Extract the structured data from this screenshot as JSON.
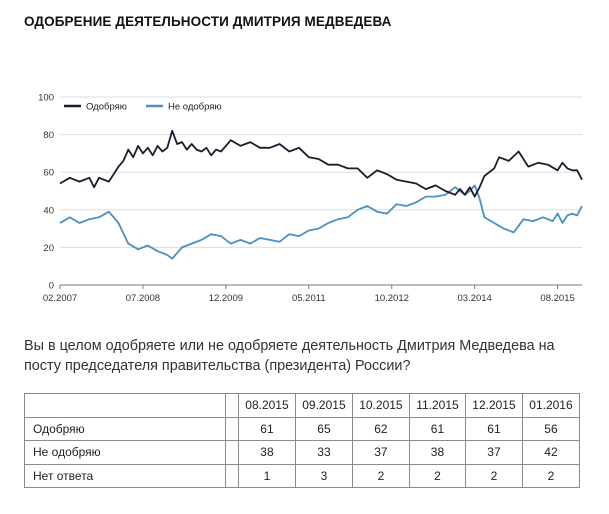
{
  "title": "ОДОБРЕНИЕ ДЕЯТЕЛЬНОСТИ ДМИТРИЯ МЕДВЕДЕВА",
  "question": "Вы в целом одобряете или не одобряете деятельность Дмитрия Медведева на посту председателя правительства (президента) России?",
  "colors": {
    "approve": "#1c1c2e",
    "disapprove": "#4a90c0",
    "grid": "#dddddd"
  },
  "chart_data": {
    "type": "line",
    "x_start": "2007-02",
    "x_end": "2016-01",
    "x_tick_labels": [
      "02.2007",
      "07.2008",
      "12.2009",
      "05.2011",
      "10.2012",
      "03.2014",
      "08.2015"
    ],
    "y_tick_labels": [
      "0",
      "20",
      "40",
      "60",
      "80",
      "100"
    ],
    "ylim": [
      0,
      100
    ],
    "grid": "horizontal",
    "legend_position": "top-left",
    "series": [
      {
        "name": "Одобряю",
        "color": "#1c1c2e",
        "points": [
          [
            "2007-02",
            54
          ],
          [
            "2007-04",
            57
          ],
          [
            "2007-06",
            55
          ],
          [
            "2007-08",
            57
          ],
          [
            "2007-09",
            52
          ],
          [
            "2007-10",
            57
          ],
          [
            "2007-12",
            55
          ],
          [
            "2008-01",
            59
          ],
          [
            "2008-02",
            63
          ],
          [
            "2008-03",
            66
          ],
          [
            "2008-04",
            72
          ],
          [
            "2008-05",
            68
          ],
          [
            "2008-06",
            74
          ],
          [
            "2008-07",
            70
          ],
          [
            "2008-08",
            73
          ],
          [
            "2008-09",
            69
          ],
          [
            "2008-10",
            74
          ],
          [
            "2008-11",
            71
          ],
          [
            "2008-12",
            73
          ],
          [
            "2009-01",
            82
          ],
          [
            "2009-02",
            75
          ],
          [
            "2009-03",
            76
          ],
          [
            "2009-04",
            72
          ],
          [
            "2009-05",
            75
          ],
          [
            "2009-06",
            72
          ],
          [
            "2009-07",
            71
          ],
          [
            "2009-08",
            73
          ],
          [
            "2009-09",
            69
          ],
          [
            "2009-10",
            72
          ],
          [
            "2009-11",
            71
          ],
          [
            "2009-12",
            74
          ],
          [
            "2010-01",
            77
          ],
          [
            "2010-03",
            74
          ],
          [
            "2010-05",
            76
          ],
          [
            "2010-07",
            73
          ],
          [
            "2010-09",
            73
          ],
          [
            "2010-11",
            75
          ],
          [
            "2011-01",
            71
          ],
          [
            "2011-03",
            73
          ],
          [
            "2011-05",
            68
          ],
          [
            "2011-07",
            67
          ],
          [
            "2011-09",
            64
          ],
          [
            "2011-11",
            64
          ],
          [
            "2012-01",
            62
          ],
          [
            "2012-03",
            62
          ],
          [
            "2012-05",
            57
          ],
          [
            "2012-07",
            61
          ],
          [
            "2012-09",
            59
          ],
          [
            "2012-11",
            56
          ],
          [
            "2013-01",
            55
          ],
          [
            "2013-03",
            54
          ],
          [
            "2013-05",
            51
          ],
          [
            "2013-07",
            53
          ],
          [
            "2013-09",
            50
          ],
          [
            "2013-11",
            48
          ],
          [
            "2013-12",
            51
          ],
          [
            "2014-01",
            48
          ],
          [
            "2014-02",
            52
          ],
          [
            "2014-03",
            47
          ],
          [
            "2014-04",
            52
          ],
          [
            "2014-05",
            58
          ],
          [
            "2014-07",
            62
          ],
          [
            "2014-08",
            68
          ],
          [
            "2014-10",
            66
          ],
          [
            "2014-12",
            71
          ],
          [
            "2015-02",
            63
          ],
          [
            "2015-04",
            65
          ],
          [
            "2015-06",
            64
          ],
          [
            "2015-08",
            61
          ],
          [
            "2015-09",
            65
          ],
          [
            "2015-10",
            62
          ],
          [
            "2015-11",
            61
          ],
          [
            "2015-12",
            61
          ],
          [
            "2016-01",
            56
          ]
        ]
      },
      {
        "name": "Не одобряю",
        "color": "#4a90c0",
        "points": [
          [
            "2007-02",
            33
          ],
          [
            "2007-04",
            36
          ],
          [
            "2007-06",
            33
          ],
          [
            "2007-08",
            35
          ],
          [
            "2007-10",
            36
          ],
          [
            "2007-12",
            39
          ],
          [
            "2008-02",
            33
          ],
          [
            "2008-04",
            22
          ],
          [
            "2008-06",
            19
          ],
          [
            "2008-08",
            21
          ],
          [
            "2008-10",
            18
          ],
          [
            "2008-12",
            16
          ],
          [
            "2009-01",
            14
          ],
          [
            "2009-03",
            20
          ],
          [
            "2009-05",
            22
          ],
          [
            "2009-07",
            24
          ],
          [
            "2009-09",
            27
          ],
          [
            "2009-11",
            26
          ],
          [
            "2010-01",
            22
          ],
          [
            "2010-03",
            24
          ],
          [
            "2010-05",
            22
          ],
          [
            "2010-07",
            25
          ],
          [
            "2010-09",
            24
          ],
          [
            "2010-11",
            23
          ],
          [
            "2011-01",
            27
          ],
          [
            "2011-03",
            26
          ],
          [
            "2011-05",
            29
          ],
          [
            "2011-07",
            30
          ],
          [
            "2011-09",
            33
          ],
          [
            "2011-11",
            35
          ],
          [
            "2012-01",
            36
          ],
          [
            "2012-03",
            40
          ],
          [
            "2012-05",
            42
          ],
          [
            "2012-07",
            39
          ],
          [
            "2012-09",
            38
          ],
          [
            "2012-11",
            43
          ],
          [
            "2013-01",
            42
          ],
          [
            "2013-03",
            44
          ],
          [
            "2013-05",
            47
          ],
          [
            "2013-07",
            47
          ],
          [
            "2013-09",
            48
          ],
          [
            "2013-11",
            52
          ],
          [
            "2014-01",
            48
          ],
          [
            "2014-02",
            50
          ],
          [
            "2014-03",
            53
          ],
          [
            "2014-04",
            46
          ],
          [
            "2014-05",
            36
          ],
          [
            "2014-07",
            33
          ],
          [
            "2014-09",
            30
          ],
          [
            "2014-11",
            28
          ],
          [
            "2015-01",
            35
          ],
          [
            "2015-03",
            34
          ],
          [
            "2015-05",
            36
          ],
          [
            "2015-07",
            34
          ],
          [
            "2015-08",
            38
          ],
          [
            "2015-09",
            33
          ],
          [
            "2015-10",
            37
          ],
          [
            "2015-11",
            38
          ],
          [
            "2015-12",
            37
          ],
          [
            "2016-01",
            42
          ]
        ]
      }
    ]
  },
  "table": {
    "headers": [
      "08.2015",
      "09.2015",
      "10.2015",
      "11.2015",
      "12.2015",
      "01.2016"
    ],
    "rows": [
      {
        "label": "Одобряю",
        "values": [
          "61",
          "65",
          "62",
          "61",
          "61",
          "56"
        ]
      },
      {
        "label": "Не одобряю",
        "values": [
          "38",
          "33",
          "37",
          "38",
          "37",
          "42"
        ]
      },
      {
        "label": "Нет ответа",
        "values": [
          "1",
          "3",
          "2",
          "2",
          "2",
          "2"
        ]
      }
    ]
  }
}
